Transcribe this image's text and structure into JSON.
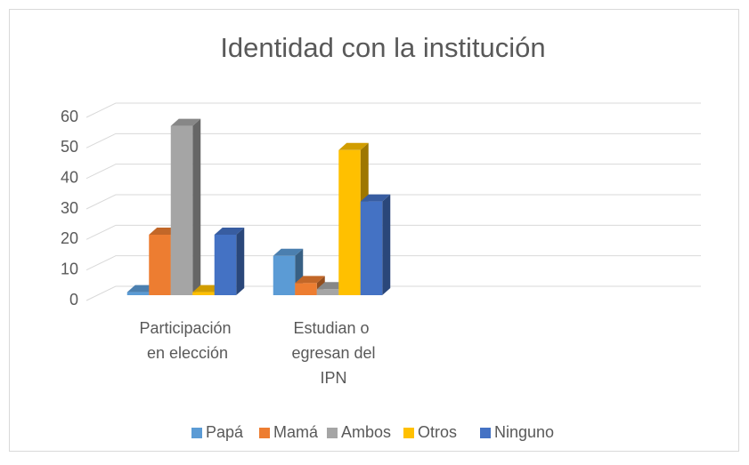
{
  "chart_data": {
    "type": "bar3d",
    "title": "Identidad con la institución",
    "categories": [
      "Participación en elección",
      "Estudian o egresan del IPN"
    ],
    "series": [
      {
        "name": "Papá",
        "color": "#5B9BD5",
        "values": [
          1,
          13
        ]
      },
      {
        "name": "Mamá",
        "color": "#ED7D31",
        "values": [
          20,
          4
        ]
      },
      {
        "name": "Ambos",
        "color": "#A5A5A5",
        "values": [
          56,
          2
        ]
      },
      {
        "name": "Otros",
        "color": "#FFC000",
        "values": [
          1,
          48
        ]
      },
      {
        "name": "Ninguno",
        "color": "#4472C4",
        "values": [
          20,
          31
        ]
      }
    ],
    "ylim": [
      0,
      60
    ],
    "yticks": [
      0,
      10,
      20,
      30,
      40,
      50,
      60
    ],
    "grid": true,
    "legend": "bottom"
  }
}
